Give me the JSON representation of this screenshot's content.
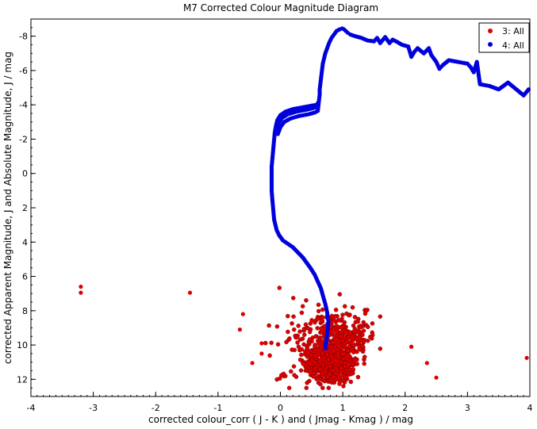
{
  "chart_data": {
    "type": "scatter",
    "title": "M7 Corrected Colour Magnitude Diagram",
    "xlabel": "corrected colour_corr ( J - K ) and ( Jmag - Kmag ) / mag",
    "ylabel": "corrected Apparent Magnitude, J   and Absolute Magnitude, J / mag",
    "xlim": [
      -4,
      4
    ],
    "ylim": [
      13,
      -9
    ],
    "y_inverted": true,
    "x_ticks": [
      -4,
      -3,
      -2,
      -1,
      0,
      1,
      2,
      3,
      4
    ],
    "y_ticks": [
      -8,
      -6,
      -4,
      -2,
      0,
      2,
      4,
      6,
      8,
      10,
      12
    ],
    "grid": false,
    "legend_position": "top-right",
    "series": [
      {
        "name": "3: All",
        "color": "#dd0000",
        "marker": "circle",
        "outliers": [
          [
            -3.2,
            6.6
          ],
          [
            -3.2,
            6.95
          ],
          [
            -1.45,
            6.95
          ],
          [
            -0.6,
            8.2
          ],
          [
            -0.65,
            9.1
          ],
          [
            -0.45,
            11.05
          ],
          [
            -0.3,
            9.9
          ],
          [
            -0.3,
            10.5
          ],
          [
            2.1,
            10.1
          ],
          [
            2.35,
            11.05
          ],
          [
            2.5,
            11.9
          ],
          [
            3.95,
            10.75
          ]
        ],
        "cluster": {
          "center_x": 0.8,
          "center_y": 11.0,
          "extent_x": [
            -0.35,
            1.6
          ],
          "extent_y": [
            6.5,
            12.5
          ],
          "note_count": 900
        }
      },
      {
        "name": "4: All",
        "color": "#0000dd",
        "marker": "circle",
        "points": [
          [
            0.72,
            10.2
          ],
          [
            0.74,
            9.6
          ],
          [
            0.76,
            9.1
          ],
          [
            0.77,
            8.6
          ],
          [
            0.75,
            8.1
          ],
          [
            0.72,
            7.6
          ],
          [
            0.68,
            7.1
          ],
          [
            0.65,
            6.7
          ],
          [
            0.6,
            6.3
          ],
          [
            0.55,
            5.9
          ],
          [
            0.48,
            5.5
          ],
          [
            0.42,
            5.2
          ],
          [
            0.36,
            4.9
          ],
          [
            0.28,
            4.6
          ],
          [
            0.2,
            4.3
          ],
          [
            0.12,
            4.1
          ],
          [
            0.04,
            3.9
          ],
          [
            -0.02,
            3.6
          ],
          [
            -0.06,
            3.3
          ],
          [
            -0.08,
            3.0
          ],
          [
            -0.1,
            2.7
          ],
          [
            -0.11,
            2.3
          ],
          [
            -0.12,
            1.9
          ],
          [
            -0.13,
            1.5
          ],
          [
            -0.14,
            1.0
          ],
          [
            -0.14,
            0.5
          ],
          [
            -0.14,
            0.0
          ],
          [
            -0.14,
            -0.4
          ],
          [
            -0.13,
            -0.8
          ],
          [
            -0.12,
            -1.2
          ],
          [
            -0.11,
            -1.6
          ],
          [
            -0.1,
            -2.0
          ],
          [
            -0.09,
            -2.4
          ],
          [
            -0.07,
            -2.8
          ],
          [
            -0.05,
            -3.1
          ],
          [
            0.0,
            -3.4
          ],
          [
            0.08,
            -3.6
          ],
          [
            0.2,
            -3.75
          ],
          [
            0.35,
            -3.85
          ],
          [
            0.5,
            -3.95
          ],
          [
            0.58,
            -4.0
          ],
          [
            0.6,
            -4.1
          ],
          [
            -0.06,
            -2.6
          ],
          [
            -0.03,
            -2.95
          ],
          [
            0.03,
            -3.25
          ],
          [
            0.12,
            -3.45
          ],
          [
            0.25,
            -3.6
          ],
          [
            0.4,
            -3.7
          ],
          [
            0.52,
            -3.8
          ],
          [
            0.58,
            -3.9
          ],
          [
            -0.04,
            -2.3
          ],
          [
            0.0,
            -2.7
          ],
          [
            0.06,
            -3.0
          ],
          [
            0.16,
            -3.2
          ],
          [
            0.3,
            -3.35
          ],
          [
            0.45,
            -3.45
          ],
          [
            0.55,
            -3.55
          ],
          [
            0.6,
            -3.65
          ],
          [
            0.62,
            -4.3
          ],
          [
            0.63,
            -4.6
          ],
          [
            0.63,
            -4.9
          ],
          [
            0.64,
            -5.2
          ],
          [
            0.65,
            -5.5
          ],
          [
            0.66,
            -5.8
          ],
          [
            0.67,
            -6.1
          ],
          [
            0.68,
            -6.4
          ],
          [
            0.7,
            -6.7
          ],
          [
            0.72,
            -7.0
          ],
          [
            0.75,
            -7.3
          ],
          [
            0.78,
            -7.6
          ],
          [
            0.82,
            -7.9
          ],
          [
            0.86,
            -8.1
          ],
          [
            0.9,
            -8.3
          ],
          [
            0.95,
            -8.4
          ],
          [
            0.99,
            -8.45
          ],
          [
            1.02,
            -8.4
          ],
          [
            1.05,
            -8.3
          ],
          [
            1.08,
            -8.2
          ],
          [
            1.12,
            -8.1
          ],
          [
            1.2,
            -8.0
          ],
          [
            1.3,
            -7.9
          ],
          [
            1.4,
            -7.75
          ],
          [
            1.5,
            -7.7
          ],
          [
            1.55,
            -7.9
          ],
          [
            1.6,
            -7.6
          ],
          [
            1.68,
            -7.95
          ],
          [
            1.75,
            -7.6
          ],
          [
            1.8,
            -7.8
          ],
          [
            1.88,
            -7.65
          ],
          [
            1.95,
            -7.5
          ],
          [
            2.05,
            -7.4
          ],
          [
            2.1,
            -6.8
          ],
          [
            2.15,
            -7.1
          ],
          [
            2.2,
            -7.3
          ],
          [
            2.3,
            -7.0
          ],
          [
            2.38,
            -7.3
          ],
          [
            2.42,
            -6.9
          ],
          [
            2.5,
            -6.5
          ],
          [
            2.55,
            -6.1
          ],
          [
            2.6,
            -6.3
          ],
          [
            2.7,
            -6.6
          ],
          [
            3.0,
            -6.4
          ],
          [
            3.05,
            -6.2
          ],
          [
            3.1,
            -5.9
          ],
          [
            3.15,
            -6.5
          ],
          [
            3.2,
            -5.2
          ],
          [
            3.35,
            -5.1
          ],
          [
            3.5,
            -4.9
          ],
          [
            3.65,
            -5.3
          ],
          [
            3.9,
            -4.55
          ],
          [
            3.98,
            -4.9
          ]
        ]
      }
    ]
  }
}
